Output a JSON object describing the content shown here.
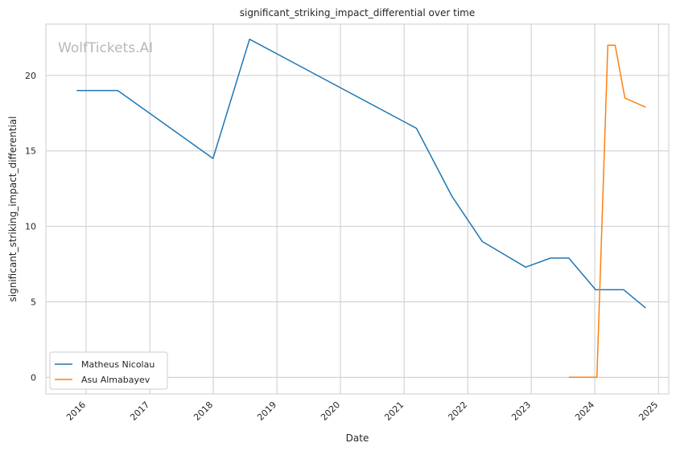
{
  "watermark": "WolfTickets.AI",
  "chart_data": {
    "type": "line",
    "title": "significant_striking_impact_differential over time",
    "xlabel": "Date",
    "ylabel": "significant_striking_impact_differential",
    "x_ticks": [
      "2016",
      "2017",
      "2018",
      "2019",
      "2020",
      "2021",
      "2022",
      "2023",
      "2024",
      "2025"
    ],
    "y_ticks": [
      "0",
      "5",
      "10",
      "15",
      "20"
    ],
    "xlim": [
      "2015-05-15",
      "2025-03-01"
    ],
    "ylim": [
      -1.1,
      23.4
    ],
    "grid": true,
    "legend_position": "lower-left",
    "series": [
      {
        "name": "Matheus Nicolau",
        "color": "#1f77b4",
        "points": [
          {
            "x": "2015-11-08",
            "y": 19.0
          },
          {
            "x": "2016-07-01",
            "y": 19.0
          },
          {
            "x": "2017-12-30",
            "y": 14.5
          },
          {
            "x": "2018-07-28",
            "y": 22.4
          },
          {
            "x": "2021-03-13",
            "y": 16.5
          },
          {
            "x": "2021-10-02",
            "y": 12.0
          },
          {
            "x": "2022-03-26",
            "y": 9.0
          },
          {
            "x": "2022-11-30",
            "y": 7.3
          },
          {
            "x": "2023-04-22",
            "y": 7.9
          },
          {
            "x": "2023-08-05",
            "y": 7.9
          },
          {
            "x": "2024-01-06",
            "y": 5.8
          },
          {
            "x": "2024-06-15",
            "y": 5.8
          },
          {
            "x": "2024-10-19",
            "y": 4.6
          }
        ]
      },
      {
        "name": "Asu Almabayev",
        "color": "#ff7f0e",
        "points": [
          {
            "x": "2023-08-05",
            "y": 0.0
          },
          {
            "x": "2024-01-13",
            "y": 0.0
          },
          {
            "x": "2024-03-16",
            "y": 22.0
          },
          {
            "x": "2024-04-27",
            "y": 22.0
          },
          {
            "x": "2024-06-22",
            "y": 18.5
          },
          {
            "x": "2024-10-19",
            "y": 17.9
          }
        ]
      }
    ]
  }
}
